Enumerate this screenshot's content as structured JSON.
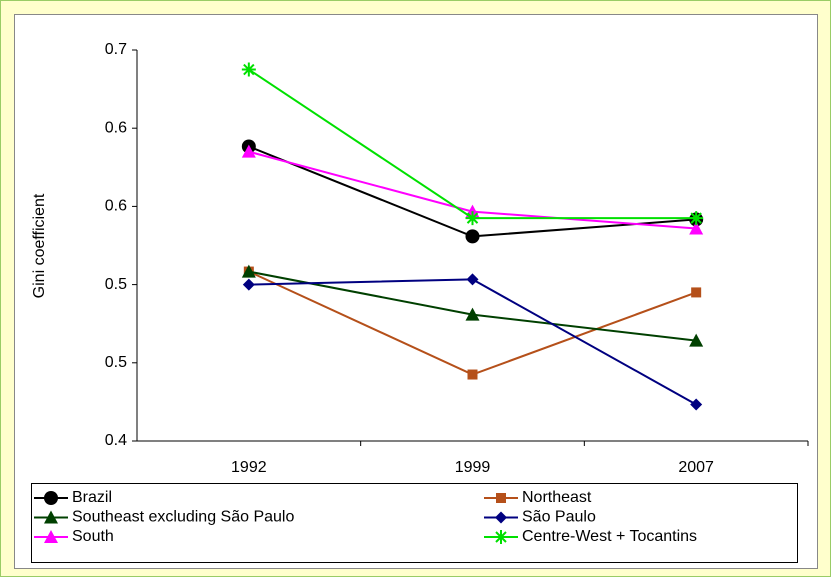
{
  "chart_data": {
    "type": "line",
    "y_label": "Gini coefficient",
    "categories": [
      "1992",
      "1999",
      "2007"
    ],
    "series": [
      {
        "name": "Brazil",
        "color": "#000000",
        "marker": "circle",
        "values": [
          0.626,
          0.557,
          0.57
        ]
      },
      {
        "name": "Northeast",
        "color": "#b5501a",
        "marker": "square",
        "values": [
          0.53,
          0.451,
          0.514
        ]
      },
      {
        "name": "Southeast excluding São Paulo",
        "color": "#004000",
        "marker": "triangle",
        "values": [
          0.53,
          0.497,
          0.477
        ]
      },
      {
        "name": "São Paulo",
        "color": "#000080",
        "marker": "diamond",
        "values": [
          0.52,
          0.524,
          0.428
        ]
      },
      {
        "name": "South",
        "color": "#ff00ff",
        "marker": "triangle",
        "values": [
          0.622,
          0.576,
          0.563
        ]
      },
      {
        "name": "Centre-West + Tocantins",
        "color": "#00e000",
        "marker": "asterisk",
        "values": [
          0.685,
          0.571,
          0.571
        ]
      }
    ],
    "ylim": [
      0.4,
      0.7
    ],
    "yticks": [
      0.4,
      {
        "value": 0.46,
        "label": "0.5"
      },
      {
        "value": 0.52,
        "label": "0.5"
      },
      {
        "value": 0.58,
        "label": "0.6"
      },
      {
        "value": 0.64,
        "label": "0.6"
      },
      0.7
    ],
    "grid": false
  }
}
